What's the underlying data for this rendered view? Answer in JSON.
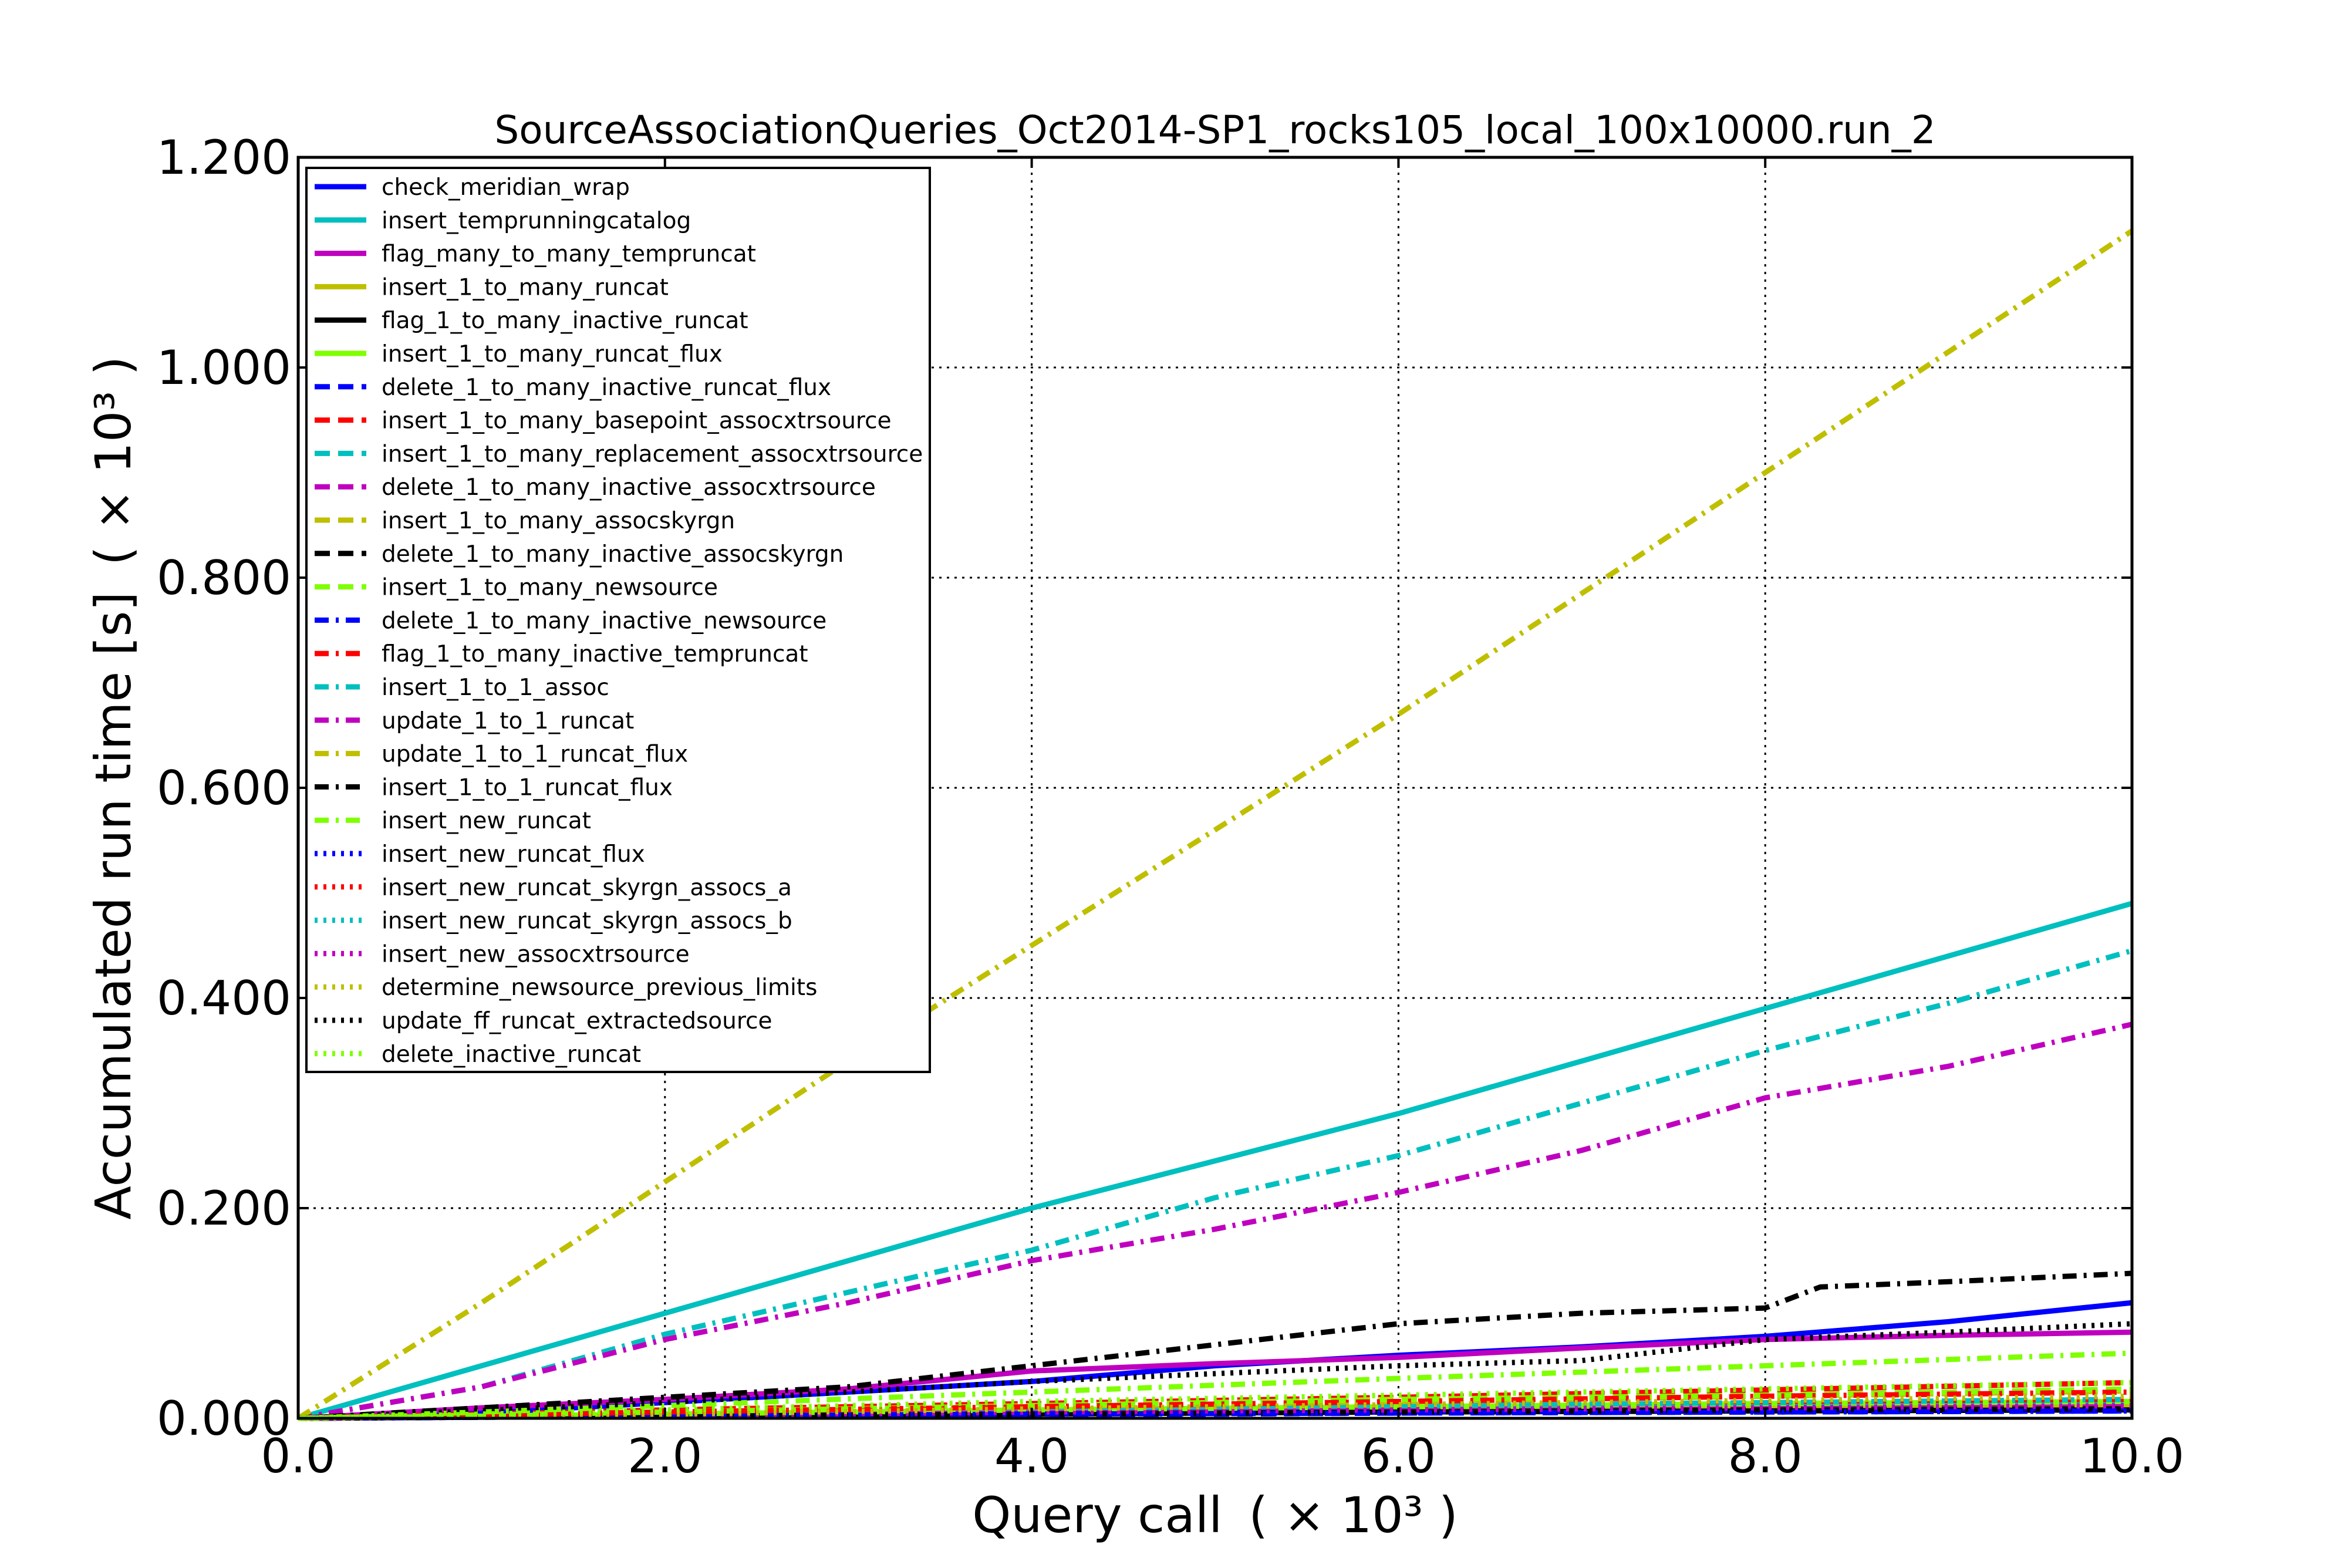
{
  "chart_data": {
    "type": "line",
    "title": "SourceAssociationQueries_Oct2014-SP1_rocks105_local_100x10000.run_2",
    "xlabel": "Query call",
    "ylabel": "Accumulated run time [s]",
    "x_multiplier": "( × 10³ )",
    "y_multiplier": "( × 10³ )",
    "xlim": [
      0,
      10
    ],
    "ylim": [
      0,
      1.2
    ],
    "x_ticks": [
      "0.0",
      "2.0",
      "4.0",
      "6.0",
      "8.0",
      "10.0"
    ],
    "y_ticks": [
      "0.000",
      "0.200",
      "0.400",
      "0.600",
      "0.800",
      "1.000",
      "1.200"
    ],
    "grid": true,
    "legend_position": "upper-left",
    "series": [
      {
        "name": "check_meridian_wrap",
        "color": "#0000ff",
        "dash": "solid",
        "points": [
          [
            0,
            0
          ],
          [
            1,
            0.005
          ],
          [
            2,
            0.015
          ],
          [
            3,
            0.025
          ],
          [
            4,
            0.035
          ],
          [
            5,
            0.05
          ],
          [
            6,
            0.06
          ],
          [
            7,
            0.068
          ],
          [
            8,
            0.078
          ],
          [
            9,
            0.092
          ],
          [
            10,
            0.11
          ]
        ]
      },
      {
        "name": "insert_temprunningcatalog",
        "color": "#00bfbf",
        "dash": "solid",
        "points": [
          [
            0,
            0
          ],
          [
            1,
            0.05
          ],
          [
            2,
            0.1
          ],
          [
            3,
            0.15
          ],
          [
            4,
            0.2
          ],
          [
            5,
            0.245
          ],
          [
            6,
            0.29
          ],
          [
            7,
            0.34
          ],
          [
            8,
            0.39
          ],
          [
            9,
            0.44
          ],
          [
            10,
            0.49
          ]
        ]
      },
      {
        "name": "flag_many_to_many_tempruncat",
        "color": "#bf00bf",
        "dash": "solid",
        "points": [
          [
            0,
            0
          ],
          [
            1,
            0.01
          ],
          [
            2,
            0.018
          ],
          [
            3,
            0.028
          ],
          [
            4,
            0.045
          ],
          [
            5,
            0.052
          ],
          [
            6,
            0.058
          ],
          [
            7,
            0.067
          ],
          [
            8,
            0.075
          ],
          [
            9,
            0.079
          ],
          [
            10,
            0.082
          ]
        ]
      },
      {
        "name": "insert_1_to_many_runcat",
        "color": "#bfbf00",
        "dash": "solid",
        "points": [
          [
            0,
            0
          ],
          [
            2,
            0.003
          ],
          [
            4,
            0.006
          ],
          [
            6,
            0.008
          ],
          [
            8,
            0.01
          ],
          [
            10,
            0.012
          ]
        ]
      },
      {
        "name": "flag_1_to_many_inactive_runcat",
        "color": "#000000",
        "dash": "solid",
        "points": [
          [
            0,
            0
          ],
          [
            2,
            0.002
          ],
          [
            4,
            0.004
          ],
          [
            6,
            0.006
          ],
          [
            8,
            0.007
          ],
          [
            10,
            0.008
          ]
        ]
      },
      {
        "name": "insert_1_to_many_runcat_flux",
        "color": "#7fff00",
        "dash": "solid",
        "points": [
          [
            0,
            0
          ],
          [
            2,
            0.004
          ],
          [
            4,
            0.008
          ],
          [
            6,
            0.011
          ],
          [
            8,
            0.014
          ],
          [
            10,
            0.016
          ]
        ]
      },
      {
        "name": "delete_1_to_many_inactive_runcat_flux",
        "color": "#0000ff",
        "dash": "dashed",
        "points": [
          [
            0,
            0
          ],
          [
            2,
            0.002
          ],
          [
            4,
            0.003
          ],
          [
            6,
            0.005
          ],
          [
            8,
            0.006
          ],
          [
            10,
            0.007
          ]
        ]
      },
      {
        "name": "insert_1_to_many_basepoint_assocxtrsource",
        "color": "#ff0000",
        "dash": "dashed",
        "points": [
          [
            0,
            0
          ],
          [
            2,
            0.008
          ],
          [
            4,
            0.014
          ],
          [
            6,
            0.02
          ],
          [
            8,
            0.027
          ],
          [
            10,
            0.034
          ]
        ]
      },
      {
        "name": "insert_1_to_many_replacement_assocxtrsource",
        "color": "#00bfbf",
        "dash": "dashed",
        "points": [
          [
            0,
            0
          ],
          [
            2,
            0.004
          ],
          [
            4,
            0.008
          ],
          [
            6,
            0.012
          ],
          [
            8,
            0.015
          ],
          [
            10,
            0.018
          ]
        ]
      },
      {
        "name": "delete_1_to_many_inactive_assocxtrsource",
        "color": "#bf00bf",
        "dash": "dashed",
        "points": [
          [
            0,
            0
          ],
          [
            2,
            0.003
          ],
          [
            4,
            0.005
          ],
          [
            6,
            0.007
          ],
          [
            8,
            0.009
          ],
          [
            10,
            0.011
          ]
        ]
      },
      {
        "name": "insert_1_to_many_assocskyrgn",
        "color": "#bfbf00",
        "dash": "dashed",
        "points": [
          [
            0,
            0
          ],
          [
            2,
            0.006
          ],
          [
            4,
            0.011
          ],
          [
            6,
            0.016
          ],
          [
            8,
            0.021
          ],
          [
            10,
            0.026
          ]
        ]
      },
      {
        "name": "delete_1_to_many_inactive_assocskyrgn",
        "color": "#000000",
        "dash": "dashed",
        "points": [
          [
            0,
            0
          ],
          [
            2,
            0.002
          ],
          [
            4,
            0.004
          ],
          [
            6,
            0.006
          ],
          [
            8,
            0.008
          ],
          [
            10,
            0.009
          ]
        ]
      },
      {
        "name": "insert_1_to_many_newsource",
        "color": "#7fff00",
        "dash": "dashed",
        "points": [
          [
            0,
            0
          ],
          [
            2,
            0.006
          ],
          [
            4,
            0.012
          ],
          [
            6,
            0.018
          ],
          [
            8,
            0.022
          ],
          [
            10,
            0.028
          ]
        ]
      },
      {
        "name": "delete_1_to_many_inactive_newsource",
        "color": "#0000ff",
        "dash": "dashdot",
        "points": [
          [
            0,
            0
          ],
          [
            2,
            0.002
          ],
          [
            4,
            0.004
          ],
          [
            6,
            0.005
          ],
          [
            8,
            0.006
          ],
          [
            10,
            0.007
          ]
        ]
      },
      {
        "name": "flag_1_to_many_inactive_tempruncat",
        "color": "#ff0000",
        "dash": "dashdot",
        "points": [
          [
            0,
            0
          ],
          [
            2,
            0.006
          ],
          [
            4,
            0.011
          ],
          [
            6,
            0.016
          ],
          [
            8,
            0.021
          ],
          [
            10,
            0.025
          ]
        ]
      },
      {
        "name": "insert_1_to_1_assoc",
        "color": "#00bfbf",
        "dash": "dashdot",
        "points": [
          [
            0,
            0
          ],
          [
            1,
            0.03
          ],
          [
            2,
            0.08
          ],
          [
            3,
            0.12
          ],
          [
            4,
            0.16
          ],
          [
            5,
            0.21
          ],
          [
            6,
            0.25
          ],
          [
            7,
            0.3
          ],
          [
            8,
            0.35
          ],
          [
            9,
            0.395
          ],
          [
            10,
            0.445
          ]
        ]
      },
      {
        "name": "update_1_to_1_runcat",
        "color": "#bf00bf",
        "dash": "dashdot",
        "points": [
          [
            0,
            0
          ],
          [
            1,
            0.03
          ],
          [
            2,
            0.075
          ],
          [
            3,
            0.11
          ],
          [
            4,
            0.15
          ],
          [
            5,
            0.18
          ],
          [
            6,
            0.215
          ],
          [
            7,
            0.255
          ],
          [
            8,
            0.305
          ],
          [
            9,
            0.335
          ],
          [
            10,
            0.375
          ]
        ]
      },
      {
        "name": "update_1_to_1_runcat_flux",
        "color": "#bfbf00",
        "dash": "dashdot",
        "points": [
          [
            0,
            0
          ],
          [
            1,
            0.11
          ],
          [
            2,
            0.225
          ],
          [
            3,
            0.34
          ],
          [
            4,
            0.45
          ],
          [
            5,
            0.56
          ],
          [
            6,
            0.67
          ],
          [
            7,
            0.785
          ],
          [
            8,
            0.9
          ],
          [
            9,
            1.015
          ],
          [
            10,
            1.13
          ]
        ]
      },
      {
        "name": "insert_1_to_1_runcat_flux",
        "color": "#000000",
        "dash": "dashdot",
        "points": [
          [
            0,
            0
          ],
          [
            1,
            0.01
          ],
          [
            2,
            0.02
          ],
          [
            3,
            0.03
          ],
          [
            4,
            0.05
          ],
          [
            5,
            0.07
          ],
          [
            6,
            0.09
          ],
          [
            7,
            0.1
          ],
          [
            8,
            0.105
          ],
          [
            8.3,
            0.125
          ],
          [
            9,
            0.13
          ],
          [
            10,
            0.138
          ]
        ]
      },
      {
        "name": "insert_new_runcat",
        "color": "#7fff00",
        "dash": "dashdot",
        "points": [
          [
            0,
            0
          ],
          [
            2,
            0.012
          ],
          [
            4,
            0.025
          ],
          [
            6,
            0.038
          ],
          [
            8,
            0.05
          ],
          [
            10,
            0.062
          ]
        ]
      },
      {
        "name": "insert_new_runcat_flux",
        "color": "#0000ff",
        "dash": "dotted",
        "points": [
          [
            0,
            0
          ],
          [
            2,
            0.002
          ],
          [
            4,
            0.004
          ],
          [
            6,
            0.006
          ],
          [
            8,
            0.008
          ],
          [
            10,
            0.01
          ]
        ]
      },
      {
        "name": "insert_new_runcat_skyrgn_assocs_a",
        "color": "#ff0000",
        "dash": "dotted",
        "points": [
          [
            0,
            0
          ],
          [
            2,
            0.004
          ],
          [
            4,
            0.008
          ],
          [
            6,
            0.012
          ],
          [
            8,
            0.015
          ],
          [
            10,
            0.018
          ]
        ]
      },
      {
        "name": "insert_new_runcat_skyrgn_assocs_b",
        "color": "#00bfbf",
        "dash": "dotted",
        "points": [
          [
            0,
            0
          ],
          [
            2,
            0.003
          ],
          [
            4,
            0.006
          ],
          [
            6,
            0.009
          ],
          [
            8,
            0.011
          ],
          [
            10,
            0.013
          ]
        ]
      },
      {
        "name": "insert_new_assocxtrsource",
        "color": "#bf00bf",
        "dash": "dotted",
        "points": [
          [
            0,
            0
          ],
          [
            2,
            0.003
          ],
          [
            4,
            0.006
          ],
          [
            6,
            0.008
          ],
          [
            8,
            0.01
          ],
          [
            10,
            0.012
          ]
        ]
      },
      {
        "name": "determine_newsource_previous_limits",
        "color": "#bfbf00",
        "dash": "dotted",
        "points": [
          [
            0,
            0
          ],
          [
            2,
            0.004
          ],
          [
            4,
            0.009
          ],
          [
            6,
            0.013
          ],
          [
            8,
            0.017
          ],
          [
            10,
            0.021
          ]
        ]
      },
      {
        "name": "update_ff_runcat_extractedsource",
        "color": "#000000",
        "dash": "dotted",
        "points": [
          [
            0,
            0
          ],
          [
            2,
            0.015
          ],
          [
            4,
            0.035
          ],
          [
            6,
            0.05
          ],
          [
            7,
            0.055
          ],
          [
            8,
            0.075
          ],
          [
            9,
            0.082
          ],
          [
            10,
            0.09
          ]
        ]
      },
      {
        "name": "delete_inactive_runcat",
        "color": "#7fff00",
        "dash": "dotted",
        "points": [
          [
            0,
            0
          ],
          [
            2,
            0.008
          ],
          [
            4,
            0.016
          ],
          [
            6,
            0.022
          ],
          [
            8,
            0.028
          ],
          [
            10,
            0.034
          ]
        ]
      }
    ]
  }
}
